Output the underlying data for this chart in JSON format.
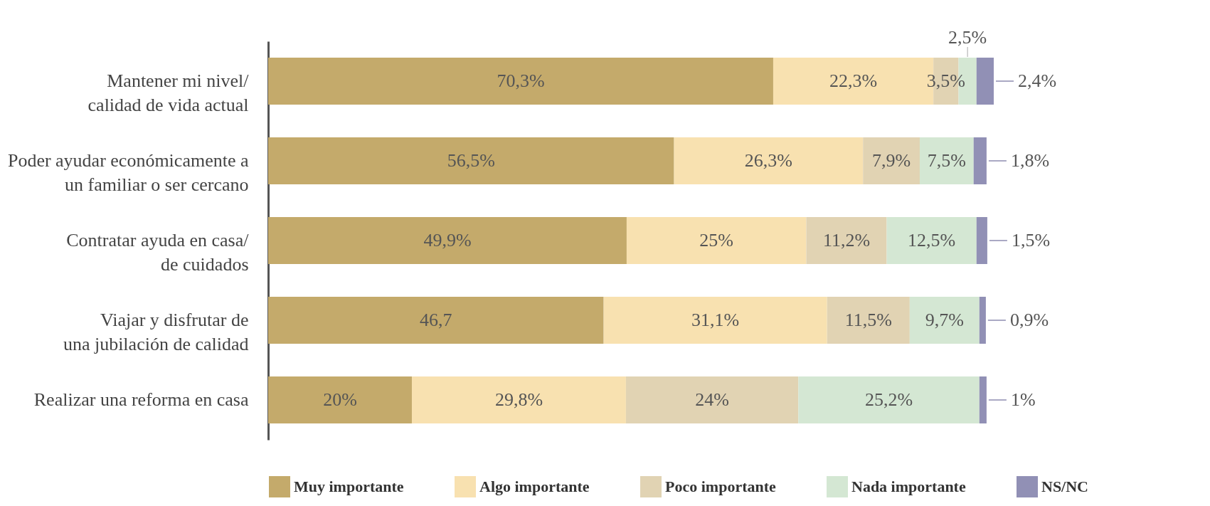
{
  "chart_data": {
    "type": "bar",
    "orientation": "horizontal",
    "stacked": true,
    "legend": "bottom",
    "grid": false,
    "categories": [
      "Mantener mi nivel/\ncalidad de vida actual",
      "Poder ayudar económicamente a\nun familiar o ser cercano",
      "Contratar ayuda en casa/\nde cuidados",
      "Viajar y disfrutar de\nuna jubilación de calidad",
      "Realizar una reforma en casa"
    ],
    "series": [
      {
        "name": "Muy importante",
        "color": "#c4aa6b",
        "values": [
          70.3,
          56.5,
          49.9,
          46.7,
          20
        ],
        "value_labels": [
          "70,3%",
          "56,5%",
          "49,9%",
          "46,7",
          "20%"
        ]
      },
      {
        "name": "Algo importante",
        "color": "#f8e1b0",
        "values": [
          22.3,
          26.3,
          25,
          31.1,
          29.8
        ],
        "value_labels": [
          "22,3%",
          "26,3%",
          "25%",
          "31,1%",
          "29,8%"
        ]
      },
      {
        "name": "Poco importante",
        "color": "#e1d3b3",
        "values": [
          3.5,
          7.9,
          11.2,
          11.5,
          24
        ],
        "value_labels": [
          "3,5%",
          "7,9%",
          "11,2%",
          "11,5%",
          "24%"
        ]
      },
      {
        "name": "Nada importante",
        "color": "#d4e7d3",
        "values": [
          2.5,
          7.5,
          12.5,
          9.7,
          25.2
        ],
        "value_labels": [
          "2,5%",
          "7,5%",
          "12,5%",
          "9,7%",
          "25,2%"
        ]
      },
      {
        "name": "NS/NC",
        "color": "#9190b5",
        "values": [
          2.4,
          1.8,
          1.5,
          0.9,
          1
        ],
        "value_labels": [
          "2,4%",
          "1,8%",
          "1,5%",
          "0,9%",
          "1%"
        ]
      }
    ]
  }
}
